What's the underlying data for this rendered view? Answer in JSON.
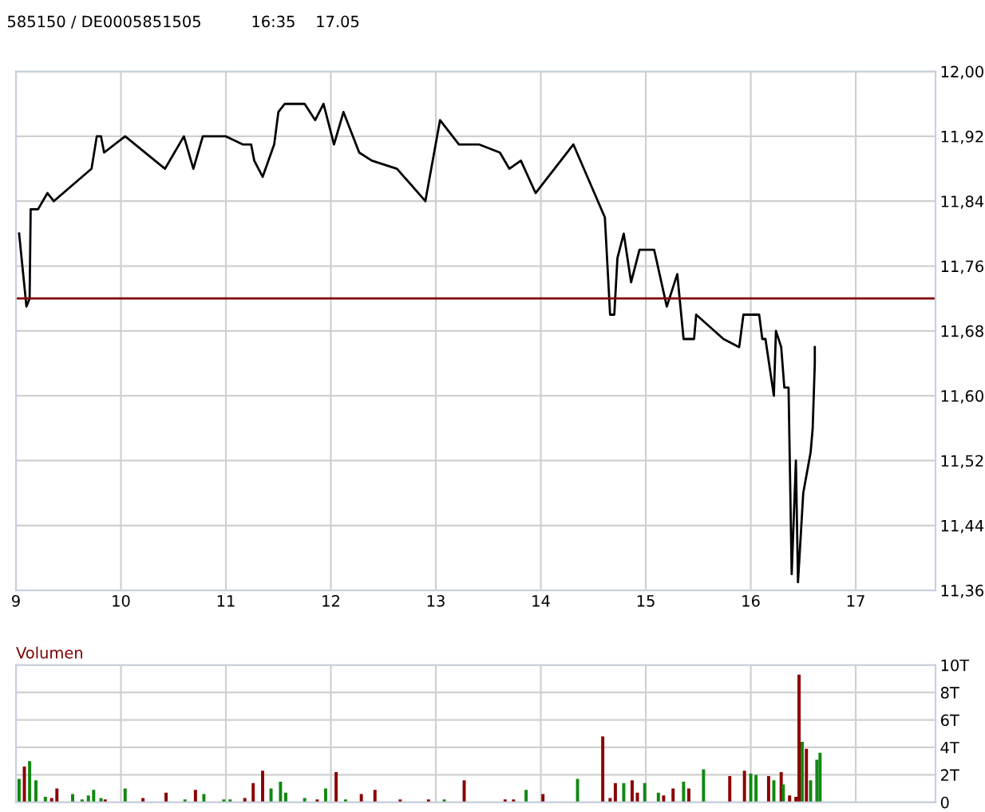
{
  "chart_data": [
    {
      "type": "line",
      "title": "585150 / DE0005851505          16:35    17.05",
      "xlim": [
        9,
        17.76
      ],
      "xticks": [
        9,
        10,
        11,
        12,
        13,
        14,
        15,
        16,
        17
      ],
      "ylim": [
        11.36,
        12.0
      ],
      "yticks": [
        {
          "value": 11.36,
          "label": "11,36"
        },
        {
          "value": 11.44,
          "label": "11,44"
        },
        {
          "value": 11.52,
          "label": "11,52"
        },
        {
          "value": 11.6,
          "label": "11,60"
        },
        {
          "value": 11.68,
          "label": "11,68"
        },
        {
          "value": 11.76,
          "label": "11,76"
        },
        {
          "value": 11.84,
          "label": "11,84"
        },
        {
          "value": 11.92,
          "label": "11,92"
        },
        {
          "value": 12.0,
          "label": "12,00"
        }
      ],
      "grid": true,
      "ref_lines": [
        {
          "axis": "y",
          "value": 11.72,
          "color": "#800000"
        }
      ],
      "series": [
        {
          "color": "#000000",
          "x": [
            9.03,
            9.1,
            9.13,
            9.14,
            9.21,
            9.3,
            9.36,
            9.72,
            9.77,
            9.81,
            9.84,
            10.04,
            10.42,
            10.6,
            10.69,
            10.78,
            11.0,
            11.16,
            11.24,
            11.27,
            11.35,
            11.46,
            11.5,
            11.56,
            11.75,
            11.85,
            11.93,
            12.03,
            12.12,
            12.27,
            12.39,
            12.63,
            12.9,
            13.04,
            13.22,
            13.41,
            13.61,
            13.7,
            13.81,
            13.95,
            14.31,
            14.51,
            14.61,
            14.66,
            14.7,
            14.73,
            14.79,
            14.86,
            14.94,
            15.08,
            15.2,
            15.3,
            15.36,
            15.46,
            15.48,
            15.74,
            15.89,
            15.93,
            16.08,
            16.11,
            16.14,
            16.22,
            16.24,
            16.29,
            16.32,
            16.36,
            16.39,
            16.43,
            16.45,
            16.5,
            16.57,
            16.59,
            16.61,
            16.61
          ],
          "values": [
            11.8,
            11.71,
            11.72,
            11.83,
            11.83,
            11.85,
            11.84,
            11.88,
            11.92,
            11.92,
            11.9,
            11.92,
            11.88,
            11.92,
            11.88,
            11.92,
            11.92,
            11.91,
            11.91,
            11.89,
            11.87,
            11.91,
            11.95,
            11.96,
            11.96,
            11.94,
            11.96,
            11.91,
            11.95,
            11.9,
            11.89,
            11.88,
            11.84,
            11.94,
            11.91,
            11.91,
            11.9,
            11.88,
            11.89,
            11.85,
            11.91,
            11.85,
            11.82,
            11.7,
            11.7,
            11.77,
            11.8,
            11.74,
            11.78,
            11.78,
            11.71,
            11.75,
            11.67,
            11.67,
            11.7,
            11.67,
            11.66,
            11.7,
            11.7,
            11.67,
            11.67,
            11.6,
            11.68,
            11.66,
            11.61,
            11.61,
            11.38,
            11.52,
            11.37,
            11.48,
            11.53,
            11.56,
            11.64,
            11.66
          ]
        }
      ]
    },
    {
      "type": "bar",
      "title": "Volumen",
      "xlim": [
        9,
        17.76
      ],
      "xticks": [
        9,
        10,
        11,
        12,
        13,
        14,
        15,
        16,
        17
      ],
      "ylim": [
        0,
        10
      ],
      "yticks": [
        0,
        {
          "value": 2,
          "label": "2T"
        },
        {
          "value": 4,
          "label": "4T"
        },
        {
          "value": 6,
          "label": "6T"
        },
        {
          "value": 8,
          "label": "8T"
        },
        {
          "value": 10,
          "label": "10T"
        }
      ],
      "grid": true,
      "tick_labels": "y",
      "x": [
        9.03,
        9.08,
        9.13,
        9.19,
        9.28,
        9.34,
        9.39,
        9.54,
        9.63,
        9.69,
        9.74,
        9.81,
        9.85,
        10.04,
        10.21,
        10.43,
        10.61,
        10.71,
        10.79,
        10.98,
        11.04,
        11.18,
        11.26,
        11.35,
        11.43,
        11.52,
        11.57,
        11.75,
        11.87,
        11.95,
        12.05,
        12.14,
        12.29,
        12.42,
        12.66,
        12.93,
        13.08,
        13.27,
        13.66,
        13.74,
        13.86,
        14.02,
        14.35,
        14.59,
        14.66,
        14.71,
        14.79,
        14.87,
        14.92,
        14.99,
        15.12,
        15.17,
        15.26,
        15.36,
        15.41,
        15.55,
        15.8,
        15.94,
        16.0,
        16.05,
        16.17,
        16.22,
        16.29,
        16.31,
        16.37,
        16.43,
        16.46,
        16.49,
        16.53,
        16.57,
        16.63,
        16.66
      ],
      "values": [
        1.7,
        2.6,
        3.0,
        1.6,
        0.4,
        0.3,
        1.0,
        0.6,
        0.2,
        0.5,
        0.9,
        0.3,
        0.2,
        1.0,
        0.3,
        0.7,
        0.2,
        0.9,
        0.6,
        0.2,
        0.2,
        0.3,
        1.4,
        2.3,
        1.0,
        1.5,
        0.7,
        0.3,
        0.2,
        1.0,
        2.2,
        0.2,
        0.6,
        0.9,
        0.2,
        0.2,
        0.2,
        1.6,
        0.2,
        0.2,
        0.9,
        0.6,
        1.7,
        4.8,
        0.3,
        1.4,
        1.4,
        1.6,
        0.7,
        1.4,
        0.7,
        0.5,
        1.0,
        1.5,
        1.0,
        2.4,
        1.9,
        2.3,
        2.1,
        2.0,
        1.9,
        1.6,
        2.2,
        1.3,
        0.5,
        0.4,
        9.3,
        4.4,
        3.9,
        1.6,
        3.1,
        3.6
      ],
      "colors": [
        "#118811",
        "#8b0000",
        "#118811",
        "#118811",
        "#118811",
        "#8b0000",
        "#8b0000",
        "#118811",
        "#118811",
        "#118811",
        "#118811",
        "#118811",
        "#8b0000",
        "#118811",
        "#8b0000",
        "#8b0000",
        "#118811",
        "#8b0000",
        "#118811",
        "#118811",
        "#118811",
        "#8b0000",
        "#8b0000",
        "#8b0000",
        "#118811",
        "#118811",
        "#118811",
        "#118811",
        "#8b0000",
        "#118811",
        "#8b0000",
        "#118811",
        "#8b0000",
        "#8b0000",
        "#8b0000",
        "#8b0000",
        "#118811",
        "#8b0000",
        "#8b0000",
        "#8b0000",
        "#118811",
        "#8b0000",
        "#118811",
        "#8b0000",
        "#8b0000",
        "#8b0000",
        "#118811",
        "#8b0000",
        "#8b0000",
        "#118811",
        "#118811",
        "#8b0000",
        "#8b0000",
        "#118811",
        "#8b0000",
        "#118811",
        "#8b0000",
        "#8b0000",
        "#118811",
        "#118811",
        "#8b0000",
        "#118811",
        "#8b0000",
        "#118811",
        "#8b0000",
        "#8b0000",
        "#8b0000",
        "#118811",
        "#8b0000",
        "#118811",
        "#118811",
        "#118811"
      ]
    }
  ]
}
